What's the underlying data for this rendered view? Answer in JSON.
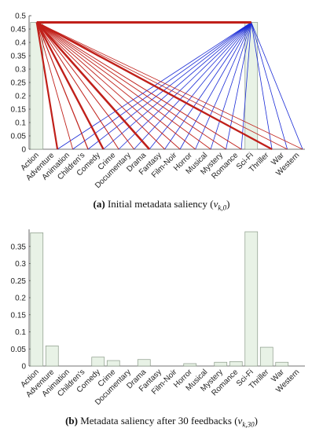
{
  "chart_data": [
    {
      "type": "bar",
      "panel_label": "(a)",
      "caption_text": "Initial metadata saliency (",
      "caption_math": "v",
      "caption_sub": "k,0",
      "caption_close": ")",
      "categories": [
        "Action",
        "Adventure",
        "Animation",
        "Children's",
        "Comedy",
        "Crime",
        "Documentary",
        "Drama",
        "Fantasy",
        "Film-Noir",
        "Horror",
        "Musical",
        "Mystery",
        "Romance",
        "Sci-Fi",
        "Thriller",
        "War",
        "Western"
      ],
      "values": [
        0.475,
        0,
        0,
        0,
        0,
        0,
        0,
        0,
        0,
        0,
        0,
        0,
        0,
        0,
        0.475,
        0,
        0,
        0
      ],
      "ylim": [
        0,
        0.5
      ],
      "yticks": [
        "0",
        "0.05",
        "0.1",
        "0.15",
        "0.2",
        "0.25",
        "0.3",
        "0.35",
        "0.4",
        "0.45",
        "0.5"
      ],
      "bar_color": "#e8f2e6",
      "links": {
        "red_color": "#c0201a",
        "blue_color": "#1a2bd6",
        "red_targets": [
          {
            "to": "Adventure",
            "weight": 2.2
          },
          {
            "to": "Animation",
            "weight": 0.9
          },
          {
            "to": "Children's",
            "weight": 1.2
          },
          {
            "to": "Comedy",
            "weight": 2.4
          },
          {
            "to": "Crime",
            "weight": 1.0
          },
          {
            "to": "Documentary",
            "weight": 1.0
          },
          {
            "to": "Drama",
            "weight": 2.6
          },
          {
            "to": "Fantasy",
            "weight": 0.9
          },
          {
            "to": "Film-Noir",
            "weight": 0.9
          },
          {
            "to": "Horror",
            "weight": 0.9
          },
          {
            "to": "Musical",
            "weight": 0.9
          },
          {
            "to": "Mystery",
            "weight": 0.9
          },
          {
            "to": "Romance",
            "weight": 1.0
          },
          {
            "to": "Sci-Fi",
            "weight": 3.0
          },
          {
            "to": "Thriller",
            "weight": 2.4
          },
          {
            "to": "War",
            "weight": 0.8
          },
          {
            "to": "Western",
            "weight": 0.8
          }
        ],
        "blue_targets": [
          {
            "to": "Adventure",
            "weight": 0.8
          },
          {
            "to": "Animation",
            "weight": 0.8
          },
          {
            "to": "Children's",
            "weight": 0.8
          },
          {
            "to": "Comedy",
            "weight": 0.8
          },
          {
            "to": "Crime",
            "weight": 0.8
          },
          {
            "to": "Documentary",
            "weight": 0.8
          },
          {
            "to": "Drama",
            "weight": 0.8
          },
          {
            "to": "Fantasy",
            "weight": 0.8
          },
          {
            "to": "Film-Noir",
            "weight": 0.8
          },
          {
            "to": "Horror",
            "weight": 0.8
          },
          {
            "to": "Musical",
            "weight": 0.8
          },
          {
            "to": "Mystery",
            "weight": 0.8
          },
          {
            "to": "Romance",
            "weight": 0.8
          },
          {
            "to": "Thriller",
            "weight": 0.8
          },
          {
            "to": "War",
            "weight": 0.8
          },
          {
            "to": "Western",
            "weight": 0.8
          }
        ]
      }
    },
    {
      "type": "bar",
      "panel_label": "(b)",
      "caption_text": "Metadata saliency after 30 feedbacks (",
      "caption_math": "v",
      "caption_sub": "k,30",
      "caption_close": ")",
      "categories": [
        "Action",
        "Adventure",
        "Animation",
        "Children's",
        "Comedy",
        "Crime",
        "Documentary",
        "Drama",
        "Fantasy",
        "Film-Noir",
        "Horror",
        "Musical",
        "Mystery",
        "Romance",
        "Sci-Fi",
        "Thriller",
        "War",
        "Western"
      ],
      "values": [
        0.39,
        0.059,
        0,
        0,
        0.026,
        0.016,
        0,
        0.019,
        0,
        0,
        0.007,
        0,
        0.011,
        0.013,
        0.393,
        0.055,
        0.011,
        0
      ],
      "ylim": [
        0,
        0.4
      ],
      "yticks": [
        "0",
        "0.05",
        "0.1",
        "0.15",
        "0.2",
        "0.25",
        "0.3",
        "0.35"
      ],
      "bar_color": "#e8f2e6"
    }
  ]
}
